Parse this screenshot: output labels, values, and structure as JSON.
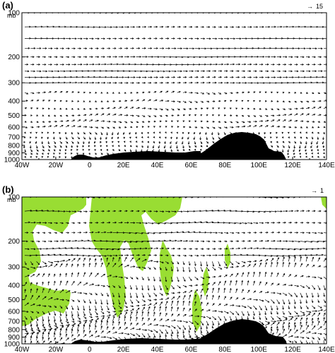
{
  "chart_data": [
    {
      "type": "vector",
      "panel_label": "(a)",
      "ylabel": "mb",
      "y_scale": "log",
      "y_ticks": [
        100,
        200,
        300,
        400,
        500,
        600,
        700,
        800,
        900,
        1000
      ],
      "x_ticks": [
        "40W",
        "20W",
        "0",
        "20E",
        "40E",
        "60E",
        "80E",
        "100E",
        "120E",
        "140E"
      ],
      "xlim": [
        -40,
        140
      ],
      "ylim": [
        1000,
        100
      ],
      "reference_vector": {
        "value": "15",
        "arrow": "→"
      },
      "terrain_color": "#000000",
      "shading": false
    },
    {
      "type": "vector",
      "panel_label": "(b)",
      "ylabel": "mb",
      "y_scale": "log",
      "y_ticks": [
        100,
        200,
        300,
        400,
        500,
        600,
        700,
        800,
        900,
        1000
      ],
      "x_ticks": [
        "40W",
        "20W",
        "0",
        "20E",
        "40E",
        "60E",
        "80E",
        "100E",
        "120E",
        "140E"
      ],
      "xlim": [
        -40,
        140
      ],
      "ylim": [
        1000,
        100
      ],
      "reference_vector": {
        "value": "1",
        "arrow": "→"
      },
      "terrain_color": "#000000",
      "shading": true,
      "shading_color": "#99dd33"
    }
  ]
}
